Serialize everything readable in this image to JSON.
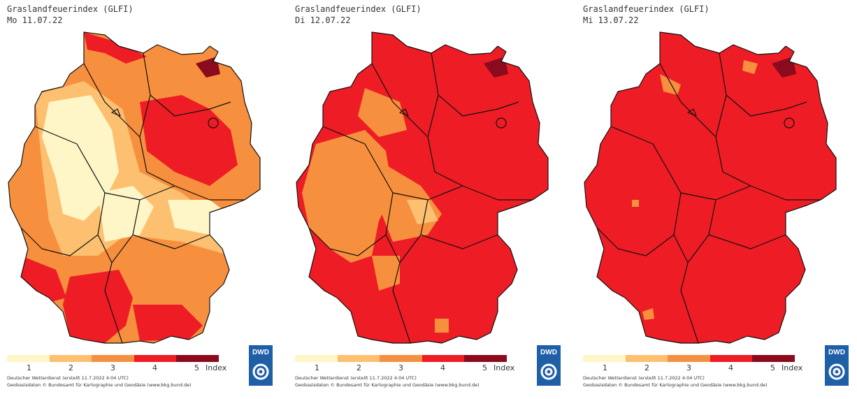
{
  "legend": {
    "labels": [
      "1",
      "2",
      "3",
      "4",
      "5"
    ],
    "unit": "Index",
    "colors": [
      "#fff6c8",
      "#fcc070",
      "#f7903e",
      "#ee1c24",
      "#8a0a1e"
    ]
  },
  "credits": {
    "line1": "Deutscher Wetterdienst (erstellt 11.7.2022 4:04 UTC)",
    "line2": "Geobasisdaten © Bundesamt für Kartographie und Geodäsie (www.bkg.bund.de)"
  },
  "logo": {
    "text": "DWD",
    "icon": "dwd-swirl-icon",
    "color": "#1f5fa8"
  },
  "panels": [
    {
      "title": "Graslandfeuerindex (GLFI)",
      "date": "Mo 11.07.22"
    },
    {
      "title": "Graslandfeuerindex (GLFI)",
      "date": "Di 12.07.22"
    },
    {
      "title": "Graslandfeuerindex (GLFI)",
      "date": "Mi 13.07.22"
    }
  ]
}
